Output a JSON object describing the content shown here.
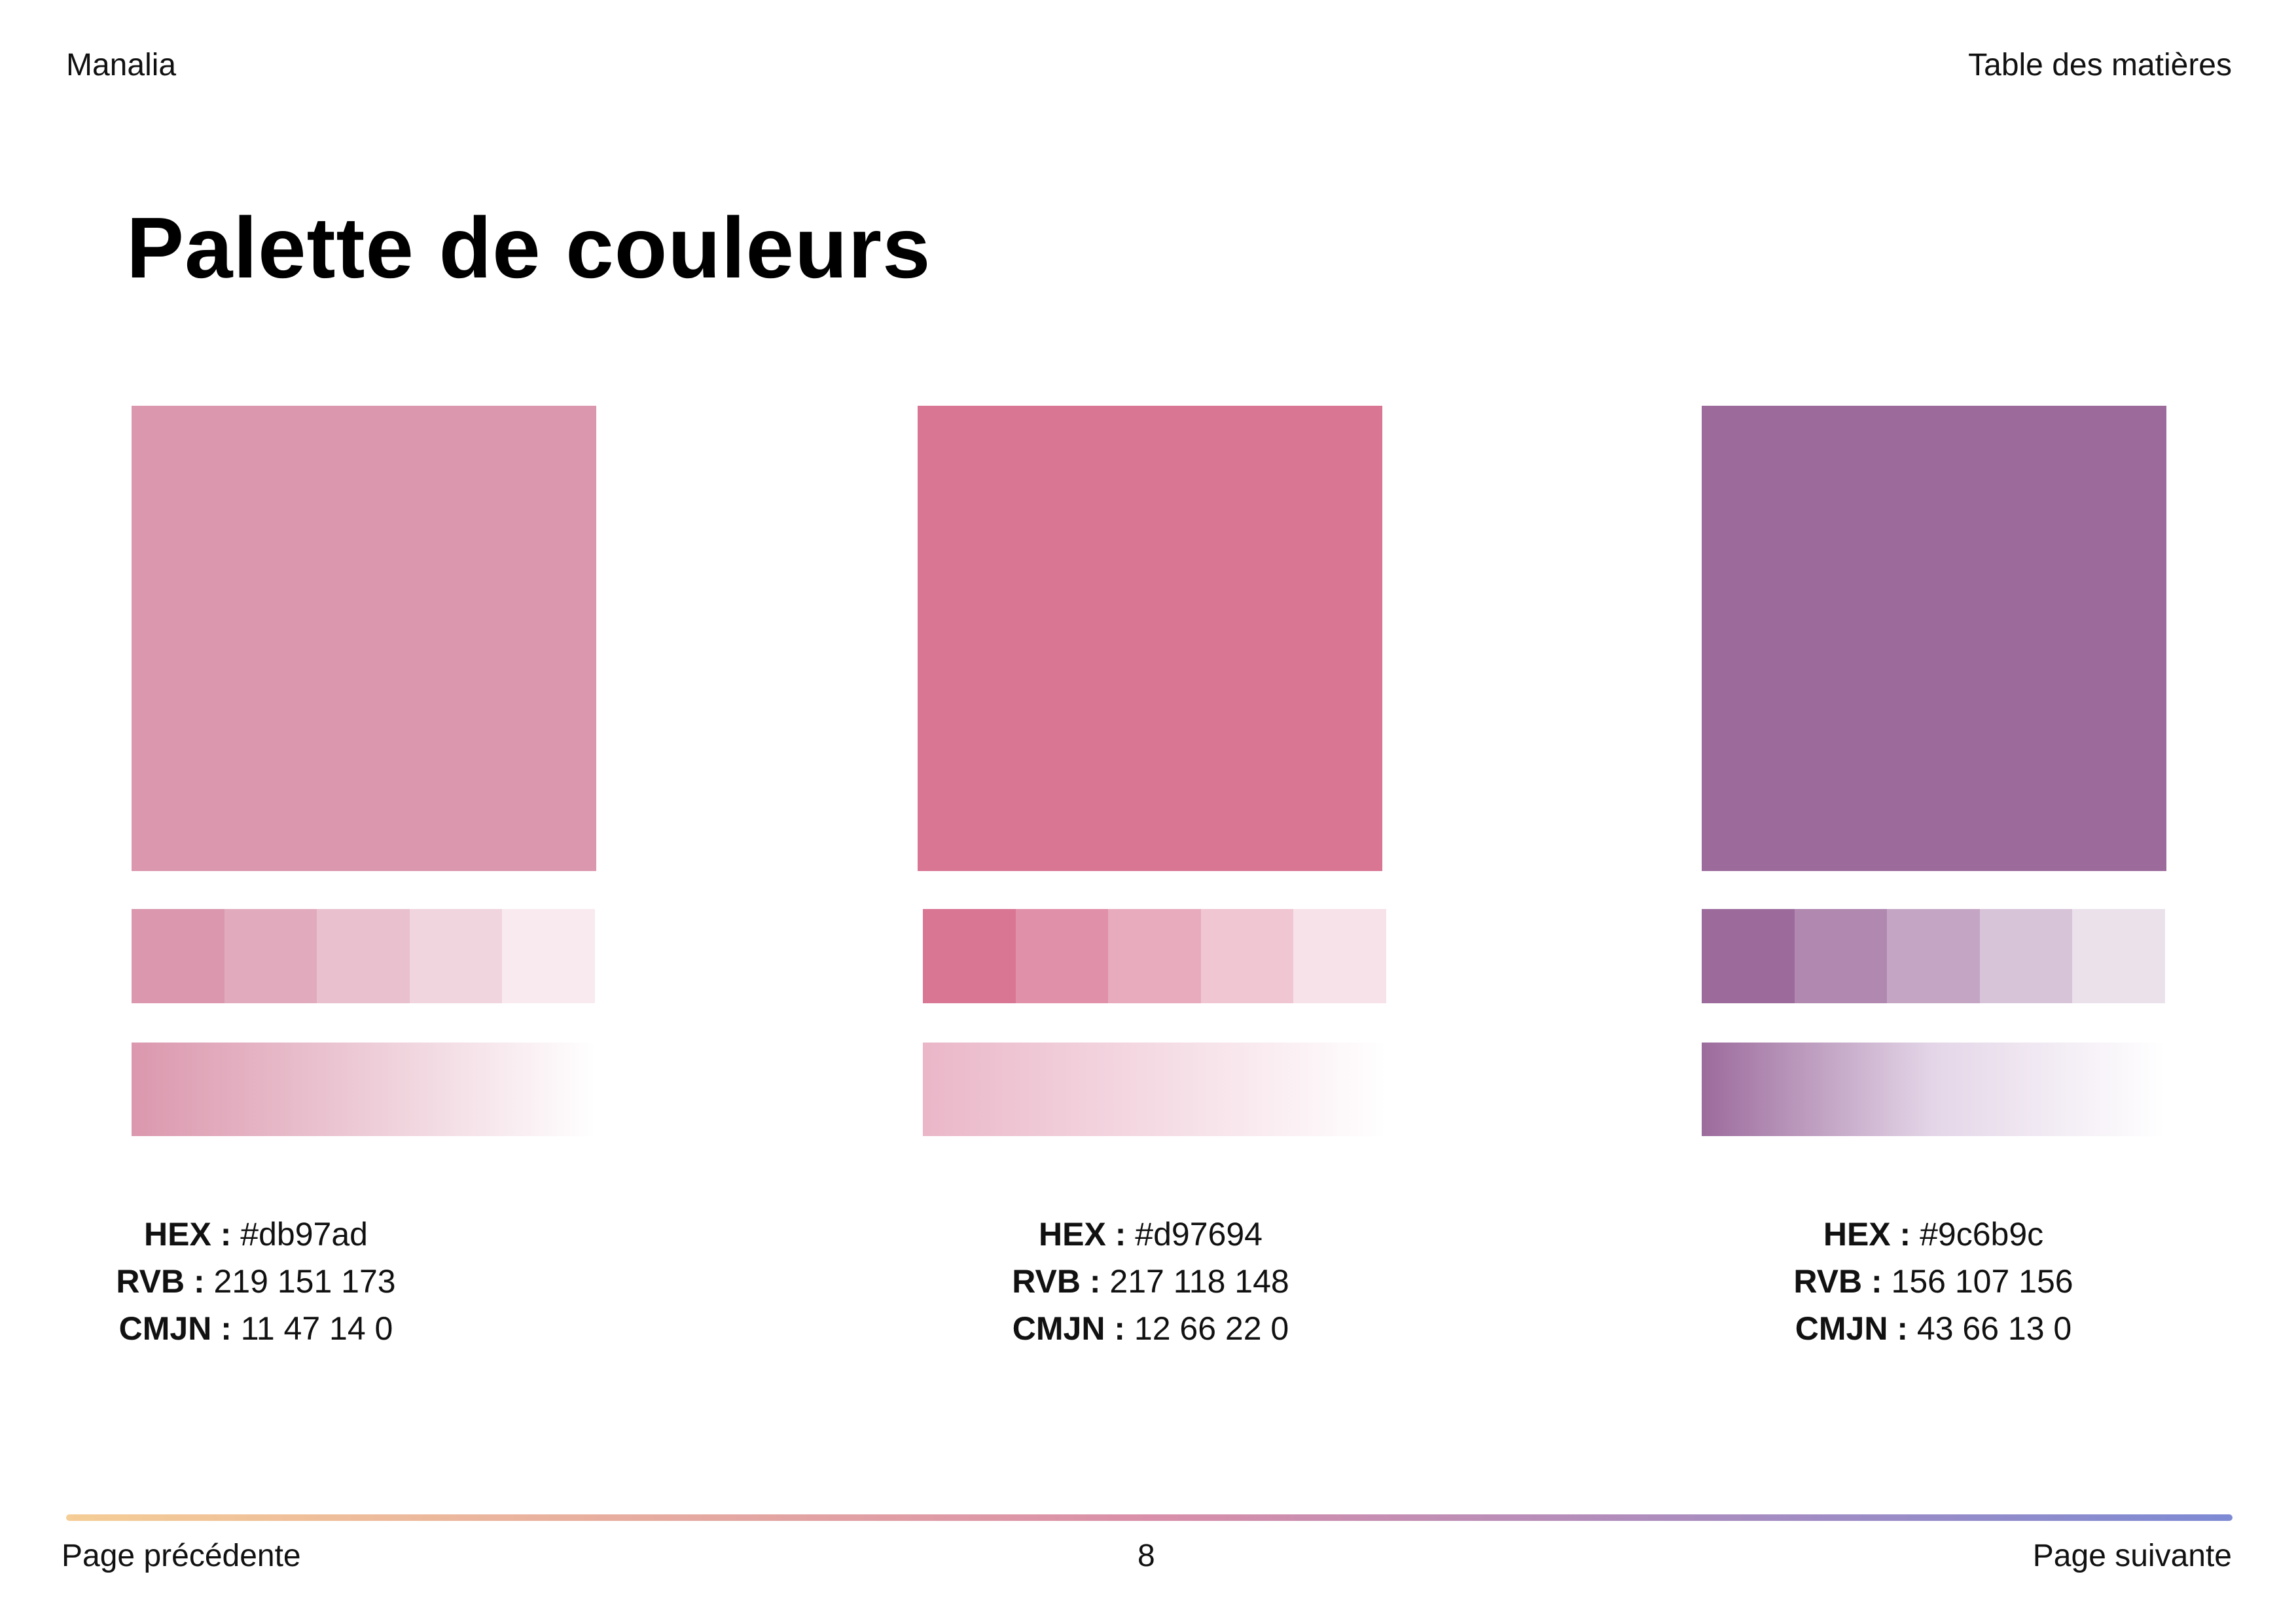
{
  "header": {
    "brand": "Manalia",
    "toc_link": "Table des matières"
  },
  "page_title": "Palette de couleurs",
  "colors": [
    {
      "swatch": "#db97ad",
      "tints": [
        "#db97ad",
        "#e2abbd",
        "#e9c0cd",
        "#f1d5de",
        "#f8eaee"
      ],
      "gradient": [
        "#db97ad",
        "#ffffff"
      ],
      "hex_label": "HEX :",
      "hex": "#db97ad",
      "rvb_label": "RVB :",
      "rvb": "219 151 173",
      "cmjn_label": "CMJN :",
      "cmjn": "11 47 14 0"
    },
    {
      "swatch": "#d97694",
      "tints": [
        "#d97694",
        "#e190a9",
        "#e8abbe",
        "#f0c6d3",
        "#f7e2e9"
      ],
      "gradient": [
        "#eab6c8",
        "#ffffff"
      ],
      "hex_label": "HEX :",
      "hex": "#d97694",
      "rvb_label": "RVB :",
      "rvb": "217 118 148",
      "cmjn_label": "CMJN :",
      "cmjn": "12 66 22 0"
    },
    {
      "swatch": "#9c6b9c",
      "tints": [
        "#9c6b9c",
        "#b088b0",
        "#c4a6c4",
        "#d8c4d8",
        "#ebe1eb"
      ],
      "gradient": [
        "#9c6b9c",
        "#e4d6e8",
        "#ffffff"
      ],
      "hex_label": "HEX :",
      "hex": "#9c6b9c",
      "rvb_label": "RVB :",
      "rvb": "156 107 156",
      "cmjn_label": "CMJN :",
      "cmjn": "43 66 13 0"
    }
  ],
  "divider_gradient": [
    "#f5cd96",
    "#d98fa9",
    "#7d8bd4"
  ],
  "footer": {
    "prev": "Page précédente",
    "page_number": "8",
    "next": "Page suivante"
  }
}
